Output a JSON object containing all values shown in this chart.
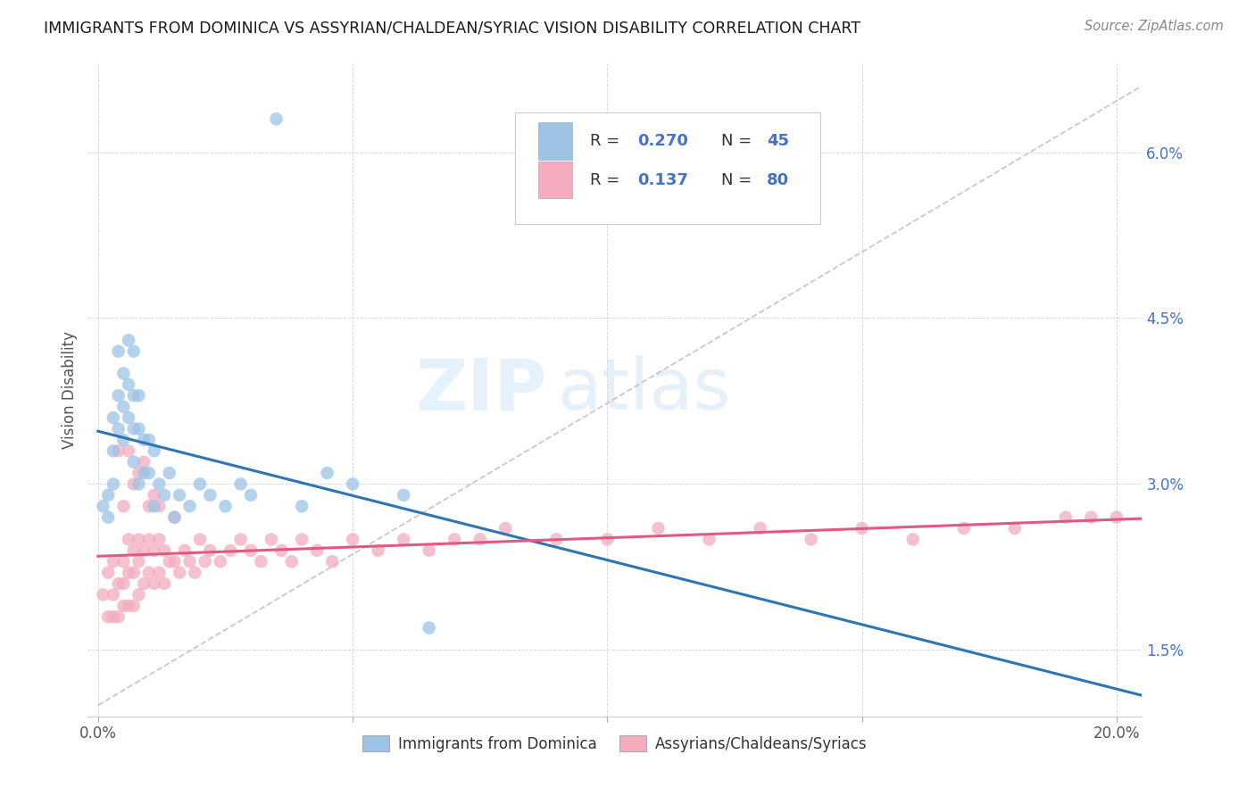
{
  "title": "IMMIGRANTS FROM DOMINICA VS ASSYRIAN/CHALDEAN/SYRIAC VISION DISABILITY CORRELATION CHART",
  "source": "Source: ZipAtlas.com",
  "xlabel_tick_vals": [
    0.0,
    0.05,
    0.1,
    0.15,
    0.2
  ],
  "xlabel_ticks": [
    "0.0%",
    "",
    "",
    "",
    "20.0%"
  ],
  "ylabel_ticks": [
    "1.5%",
    "3.0%",
    "4.5%",
    "6.0%"
  ],
  "ylabel_tick_vals": [
    0.015,
    0.03,
    0.045,
    0.06
  ],
  "ylabel": "Vision Disability",
  "legend_label1": "Immigrants from Dominica",
  "legend_label2": "Assyrians/Chaldeans/Syriacs",
  "R1": 0.27,
  "N1": 45,
  "R2": 0.137,
  "N2": 80,
  "color1": "#9DC3E6",
  "color2": "#F4ACBE",
  "trend1_color": "#2E75B6",
  "trend2_color": "#E05A80",
  "dashed_color": "#BBBBBB",
  "xlim": [
    -0.002,
    0.205
  ],
  "ylim": [
    0.009,
    0.068
  ],
  "watermark_zip": "ZIP",
  "watermark_atlas": "atlas",
  "bg_color": "#FFFFFF"
}
